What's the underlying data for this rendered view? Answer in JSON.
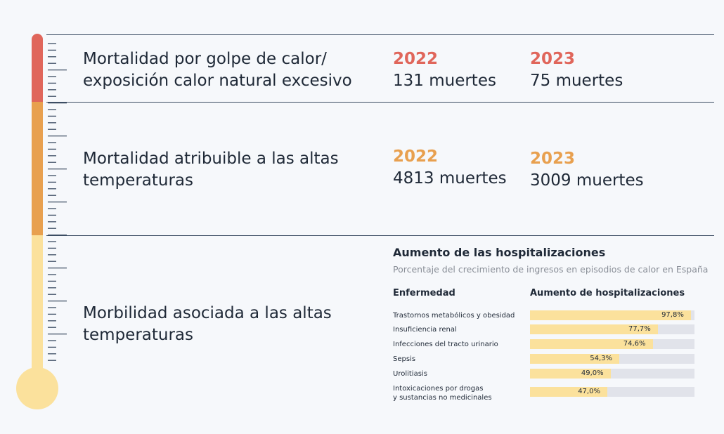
{
  "rows": [
    {
      "title": "Mortalidad por golpe de calor/\nexposición calor natural excesivo",
      "stats": [
        {
          "year": "2022",
          "value": "131 muertes"
        },
        {
          "year": "2023",
          "value": "75 muertes"
        }
      ]
    },
    {
      "title": "Mortalidad atribuible a las altas\ntemperaturas",
      "stats": [
        {
          "year": "2022",
          "value": "4813 muertes"
        },
        {
          "year": "2023",
          "value": "3009 muertes"
        }
      ]
    },
    {
      "title": "Morbilidad asociada a las altas\ntemperaturas"
    }
  ],
  "colors": {
    "thermo_red": "#e0665b",
    "thermo_orange": "#e8a04f",
    "thermo_yellow": "#fbe19c",
    "bar_fill": "#fbe19c",
    "bar_track": "#e1e3ea",
    "line": "#3c4d63"
  },
  "chart_data": {
    "type": "bar",
    "orientation": "horizontal",
    "title": "Aumento de las hospitalizaciones",
    "subtitle": "Porcentaje del crecimiento de ingresos en episodios de calor en España",
    "category_header": "Enfermedad",
    "value_header": "Aumento de hospitalizaciones",
    "categories": [
      "Trastornos metabólicos y obesidad",
      "Insuficiencia renal",
      "Infecciones del tracto urinario",
      "Sepsis",
      "Urolitiasis",
      "Intoxicaciones por drogas\ny sustancias no medicinales"
    ],
    "values": [
      97.8,
      77.7,
      74.6,
      54.3,
      49.0,
      47.0
    ],
    "value_labels": [
      "97,8%",
      "77,7%",
      "74,6%",
      "54,3%",
      "49,0%",
      "47,0%"
    ],
    "xlim": [
      0,
      100
    ]
  }
}
